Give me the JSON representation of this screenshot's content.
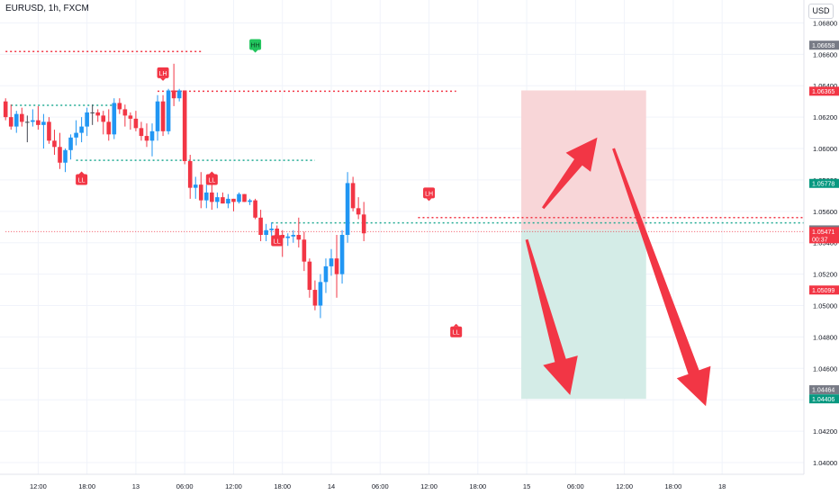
{
  "symbol": "EURUSD, 1h, FXCM",
  "currency_button": "USD",
  "colors": {
    "up": "#2196f3",
    "down": "#f23645",
    "neutral": "#434651",
    "green_dotted": "#22ab94",
    "red_dotted": "#f23645",
    "stop_zone": "#f8d6d8",
    "target_zone": "#d4ece7",
    "arrow": "#f23645",
    "hh_label": "#22c55e",
    "label": "#f23645"
  },
  "chart_data": {
    "type": "candlestick",
    "y_axis": {
      "min": 1.0395,
      "max": 1.0695,
      "ticks": [
        "1.04000",
        "1.04200",
        "1.04400",
        "1.04600",
        "1.04800",
        "1.05000",
        "1.05200",
        "1.05400",
        "1.05600",
        "1.05800",
        "1.06000",
        "1.06200",
        "1.06400",
        "1.06600",
        "1.06800"
      ]
    },
    "x_axis": {
      "ticks": [
        {
          "label": "12:00",
          "bar": 6
        },
        {
          "label": "18:00",
          "bar": 15
        },
        {
          "label": "13",
          "bar": 24
        },
        {
          "label": "06:00",
          "bar": 33
        },
        {
          "label": "12:00",
          "bar": 42
        },
        {
          "label": "18:00",
          "bar": 51
        },
        {
          "label": "14",
          "bar": 60
        },
        {
          "label": "06:00",
          "bar": 69
        },
        {
          "label": "12:00",
          "bar": 78
        },
        {
          "label": "18:00",
          "bar": 87
        },
        {
          "label": "15",
          "bar": 96
        },
        {
          "label": "06:00",
          "bar": 105
        },
        {
          "label": "12:00",
          "bar": 114
        },
        {
          "label": "18:00",
          "bar": 123
        },
        {
          "label": "18",
          "bar": 132
        }
      ]
    },
    "candles": [
      [
        1.063,
        1.0632,
        1.0618,
        1.062
      ],
      [
        1.062,
        1.0628,
        1.0612,
        1.0614
      ],
      [
        1.0614,
        1.0624,
        1.061,
        1.0622
      ],
      [
        1.0622,
        1.0626,
        1.0614,
        1.0617
      ],
      [
        1.0617,
        1.0621,
        1.0604,
        1.0617
      ],
      [
        1.0617,
        1.0625,
        1.0614,
        1.0618
      ],
      [
        1.0618,
        1.0627,
        1.0612,
        1.0615
      ],
      [
        1.0615,
        1.0622,
        1.06,
        1.0617
      ],
      [
        1.0617,
        1.062,
        1.0603,
        1.0605
      ],
      [
        1.0605,
        1.0612,
        1.0596,
        1.0601
      ],
      [
        1.0601,
        1.061,
        1.0587,
        1.0591
      ],
      [
        1.0591,
        1.06,
        1.0585,
        1.0599
      ],
      [
        1.0599,
        1.0609,
        1.0593,
        1.0607
      ],
      [
        1.0607,
        1.0618,
        1.0602,
        1.061
      ],
      [
        1.061,
        1.062,
        1.0604,
        1.0614
      ],
      [
        1.0614,
        1.0626,
        1.0608,
        1.0623
      ],
      [
        1.0623,
        1.0628,
        1.0615,
        1.0623
      ],
      [
        1.0623,
        1.0625,
        1.0617,
        1.0621
      ],
      [
        1.0621,
        1.0624,
        1.0609,
        1.0617
      ],
      [
        1.0617,
        1.0625,
        1.0605,
        1.0609
      ],
      [
        1.0609,
        1.0632,
        1.0606,
        1.0629
      ],
      [
        1.0629,
        1.0632,
        1.0622,
        1.0625
      ],
      [
        1.0625,
        1.0628,
        1.0614,
        1.0621
      ],
      [
        1.0621,
        1.0623,
        1.0612,
        1.0619
      ],
      [
        1.0619,
        1.0624,
        1.0611,
        1.0613
      ],
      [
        1.0613,
        1.0617,
        1.0605,
        1.0608
      ],
      [
        1.0608,
        1.0616,
        1.0601,
        1.0605
      ],
      [
        1.0605,
        1.0616,
        1.0595,
        1.0611
      ],
      [
        1.0611,
        1.0634,
        1.0605,
        1.063
      ],
      [
        1.063,
        1.0634,
        1.0608,
        1.0611
      ],
      [
        1.0611,
        1.0638,
        1.0609,
        1.0637
      ],
      [
        1.0637,
        1.0654,
        1.0627,
        1.0632
      ],
      [
        1.0632,
        1.0638,
        1.063,
        1.0637
      ],
      [
        1.0637,
        1.0637,
        1.059,
        1.0592
      ],
      [
        1.0592,
        1.0596,
        1.0568,
        1.0575
      ],
      [
        1.0575,
        1.0582,
        1.0568,
        1.0577
      ],
      [
        1.0577,
        1.0585,
        1.0562,
        1.0567
      ],
      [
        1.0567,
        1.0577,
        1.0562,
        1.0572
      ],
      [
        1.0572,
        1.0578,
        1.0561,
        1.0566
      ],
      [
        1.0566,
        1.0572,
        1.0562,
        1.0569
      ],
      [
        1.0569,
        1.0572,
        1.0565,
        1.0565
      ],
      [
        1.0565,
        1.0571,
        1.0562,
        1.0568
      ],
      [
        1.0568,
        1.0568,
        1.056,
        1.0566
      ],
      [
        1.0566,
        1.0572,
        1.0565,
        1.0571
      ],
      [
        1.0571,
        1.0571,
        1.0566,
        1.0566
      ],
      [
        1.0566,
        1.0568,
        1.0564,
        1.0567
      ],
      [
        1.0567,
        1.0568,
        1.0555,
        1.0556
      ],
      [
        1.0556,
        1.0561,
        1.0541,
        1.0545
      ],
      [
        1.0545,
        1.0552,
        1.0541,
        1.0548
      ],
      [
        1.0548,
        1.0553,
        1.0544,
        1.0549
      ],
      [
        1.0549,
        1.0551,
        1.0542,
        1.0545
      ],
      [
        1.0545,
        1.0548,
        1.0531,
        1.0543
      ],
      [
        1.0543,
        1.0546,
        1.0538,
        1.0544
      ],
      [
        1.0544,
        1.0548,
        1.054,
        1.0545
      ],
      [
        1.0545,
        1.0556,
        1.0537,
        1.0542
      ],
      [
        1.0542,
        1.0547,
        1.0522,
        1.0528
      ],
      [
        1.0528,
        1.053,
        1.0505,
        1.051
      ],
      [
        1.051,
        1.0516,
        1.0497,
        1.05
      ],
      [
        1.05,
        1.052,
        1.0492,
        1.0515
      ],
      [
        1.0515,
        1.053,
        1.0508,
        1.0525
      ],
      [
        1.0525,
        1.0536,
        1.0519,
        1.053
      ],
      [
        1.053,
        1.0545,
        1.0505,
        1.052
      ],
      [
        1.052,
        1.0548,
        1.0514,
        1.0545
      ],
      [
        1.0545,
        1.0585,
        1.054,
        1.0578
      ],
      [
        1.0578,
        1.0582,
        1.056,
        1.0562
      ],
      [
        1.0562,
        1.0569,
        1.0555,
        1.0558
      ],
      [
        1.0558,
        1.0566,
        1.0541,
        1.0546
      ]
    ],
    "horizontal_levels": [
      {
        "price": 1.06618,
        "bar_from": 0,
        "bar_to": 36,
        "style": "red-dotted"
      },
      {
        "price": 1.06365,
        "bar_from": 28,
        "bar_to": 83,
        "style": "red-dotted"
      },
      {
        "price": 1.06275,
        "bar_from": 1,
        "bar_to": 21,
        "style": "green-dotted"
      },
      {
        "price": 1.05925,
        "bar_from": 13,
        "bar_to": 57,
        "style": "green-dotted"
      },
      {
        "price": 1.05527,
        "bar_from": 49,
        "bar_to": 155,
        "style": "green-dotted"
      },
      {
        "price": 1.0556,
        "bar_from": 76,
        "bar_to": 155,
        "style": "red-dotted"
      },
      {
        "price": 1.05471,
        "bar_from": 0,
        "bar_to": 155,
        "style": "red-thin"
      }
    ],
    "pivot_labels": [
      {
        "text": "LL",
        "bar": 14,
        "price": 1.0586,
        "fg": "below"
      },
      {
        "text": "LH",
        "bar": 29,
        "price": 1.06425,
        "fg": "above"
      },
      {
        "text": "LL",
        "bar": 38,
        "price": 1.0586,
        "fg": "below"
      },
      {
        "text": "HH",
        "bar": 46,
        "price": 1.06605,
        "fg": "above"
      },
      {
        "text": "LL",
        "bar": 50,
        "price": 1.0547,
        "fg": "below"
      },
      {
        "text": "LH",
        "bar": 78,
        "price": 1.0566,
        "fg": "above"
      },
      {
        "text": "LL",
        "bar": 83,
        "price": 1.0489,
        "fg": "below"
      }
    ],
    "position_tool": {
      "bar_from": 95,
      "bar_to": 118,
      "stop": 1.0637,
      "entry": 1.05482,
      "target": 1.04406
    },
    "price_tags": [
      {
        "price": 1.06658,
        "text": "1.06658",
        "kind": "gray"
      },
      {
        "price": 1.06365,
        "text": "1.06365",
        "kind": "red"
      },
      {
        "price": 1.05778,
        "text": "1.05778",
        "kind": "green"
      },
      {
        "price": 1.05482,
        "text": "1.05482",
        "kind": "gray"
      },
      {
        "price": 1.05471,
        "text": "1.05471",
        "kind": "red",
        "sub": "00:37"
      },
      {
        "price": 1.05099,
        "text": "1.05099",
        "kind": "red"
      },
      {
        "price": 1.04464,
        "text": "1.04464",
        "kind": "gray"
      },
      {
        "price": 1.04406,
        "text": "1.04406",
        "kind": "green"
      }
    ],
    "arrows": [
      {
        "from_bar": 99,
        "from_price": 1.0562,
        "to_bar": 109,
        "to_price": 1.0607,
        "name": "arrow-up"
      },
      {
        "from_bar": 96,
        "from_price": 1.0542,
        "to_bar": 104,
        "to_price": 1.0443,
        "name": "arrow-down-short"
      },
      {
        "from_bar": 112,
        "from_price": 1.06,
        "to_bar": 129,
        "to_price": 1.0436,
        "name": "arrow-down-long"
      }
    ]
  }
}
